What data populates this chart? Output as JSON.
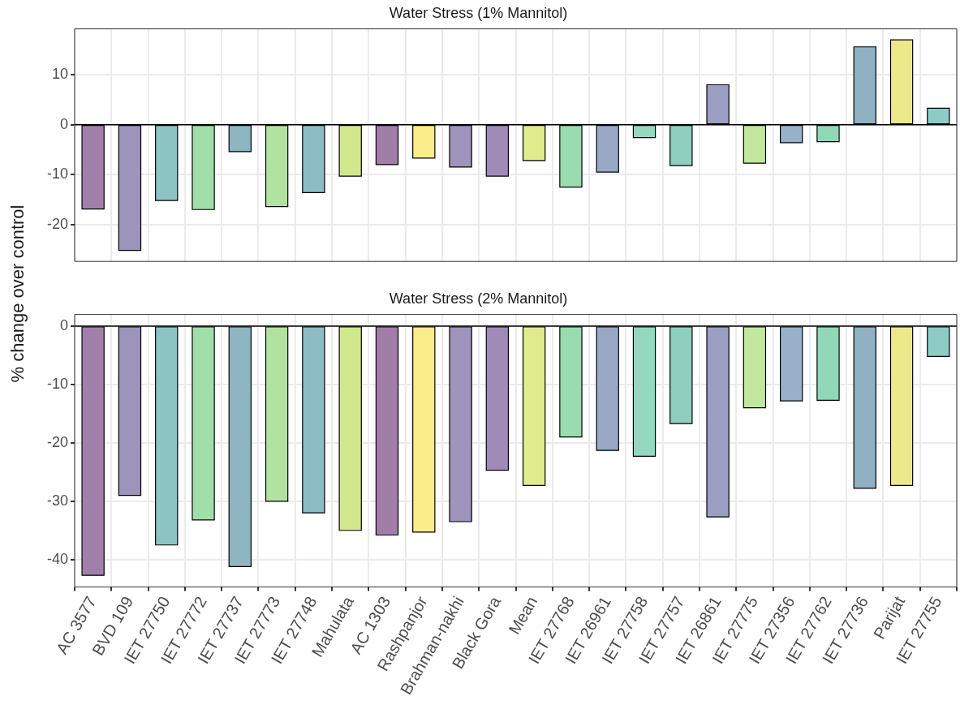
{
  "chart_data": [
    {
      "type": "bar",
      "title": "Water Stress (1% Mannitol)",
      "ylabel": "% change over control",
      "categories": [
        null,
        null,
        null,
        null,
        null,
        null,
        null,
        null,
        null,
        null,
        null,
        null,
        null,
        null,
        null,
        null,
        null,
        null,
        null,
        null,
        null,
        null,
        null,
        null
      ],
      "values": [
        -16.9,
        -25.2,
        -15.2,
        -17.0,
        -5.4,
        -16.4,
        -13.6,
        -10.3,
        -8.0,
        -6.7,
        -8.5,
        -10.3,
        -7.2,
        -12.5,
        -9.5,
        -2.6,
        -8.2,
        8.0,
        -7.7,
        -3.6,
        -3.4,
        15.6,
        17.0,
        3.3
      ],
      "colors": [
        "#a17fab",
        "#9d94bc",
        "#8cc4c4",
        "#a2dea8",
        "#8fb4c2",
        "#b2e2a0",
        "#8dbcc4",
        "#d2e88c",
        "#a07ea8",
        "#fbed8a",
        "#9f94bc",
        "#a08bb8",
        "#e0ec8c",
        "#98dcb0",
        "#98a8c6",
        "#94d8c0",
        "#8ed0c0",
        "#9c9ec4",
        "#c2e8a0",
        "#98b0c8",
        "#90d8b8",
        "#90b0c4",
        "#ece98a",
        "#8cccc4"
      ],
      "ylim": [
        -27.4,
        19.2
      ],
      "yticks": [
        -20,
        -10,
        0,
        10
      ],
      "grid": true,
      "tick_labels": "y",
      "ref_lines": [
        {
          "axis": "y",
          "value": 0
        }
      ]
    },
    {
      "type": "bar",
      "title": "Water Stress (2% Mannitol)",
      "categories": [
        "AC 3577",
        "BVD 109",
        "IET 27750",
        "IET 27772",
        "IET 27737",
        "IET 27773",
        "IET 27748",
        "Mahulata",
        "AC 1303",
        "Rashpanjor",
        "Brahman-nakhi",
        "Black Gora",
        "Mean",
        "IET 27768",
        "IET 26961",
        "IET 27758",
        "IET 27757",
        "IET 26861",
        "IET 27775",
        "IET 27356",
        "IET 27762",
        "IET 27736",
        "Parijat",
        "IET 27755"
      ],
      "values": [
        -42.7,
        -29.0,
        -37.5,
        -33.2,
        -41.2,
        -30.0,
        -32.0,
        -35.0,
        -35.8,
        -35.3,
        -33.5,
        -24.7,
        -27.3,
        -19.0,
        -21.3,
        -22.3,
        -16.7,
        -32.7,
        -14.0,
        -12.8,
        -12.7,
        -27.8,
        -27.3,
        -5.2
      ],
      "colors": [
        "#a17fab",
        "#9d94bc",
        "#8cc4c4",
        "#a2dea8",
        "#8fb4c2",
        "#b2e2a0",
        "#8dbcc4",
        "#d2e88c",
        "#a07ea8",
        "#fbed8a",
        "#9f94bc",
        "#a08bb8",
        "#e0ec8c",
        "#98dcb0",
        "#98a8c6",
        "#94d8c0",
        "#8ed0c0",
        "#9c9ec4",
        "#c2e8a0",
        "#98b0c8",
        "#90d8b8",
        "#90b0c4",
        "#ece98a",
        "#8cccc4"
      ],
      "ylim": [
        -44.7,
        2
      ],
      "yticks": [
        -40,
        -30,
        -20,
        -10,
        0
      ],
      "grid": true,
      "ref_lines": [
        {
          "axis": "y",
          "value": 0
        }
      ]
    }
  ]
}
